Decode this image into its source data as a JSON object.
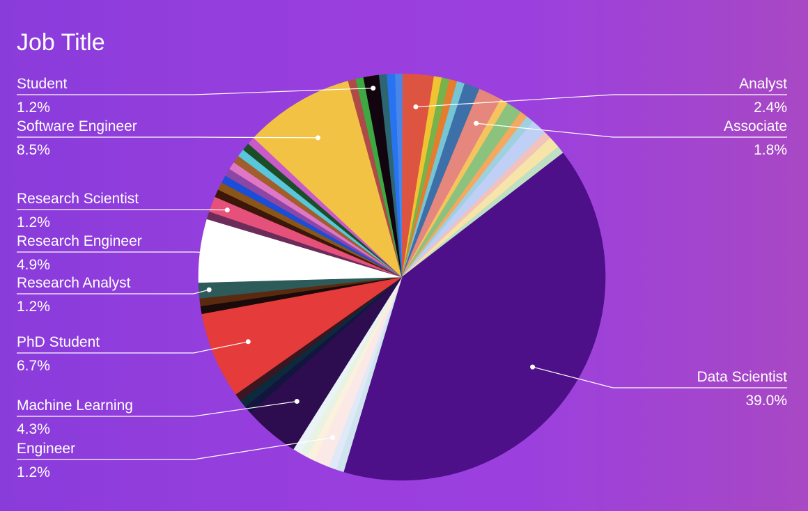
{
  "chart_data": {
    "type": "pie",
    "title": "Job Title",
    "start_angle_deg": -2,
    "colors": {
      "background_left": "#8a3cdb",
      "background_right": "#a848c4",
      "label_text": "#ffffff",
      "leader_line": "#ffffff"
    },
    "labeled_slices": [
      {
        "name": "Analyst",
        "value_label": "2.4%",
        "side": "right"
      },
      {
        "name": "Associate",
        "value_label": "1.8%",
        "side": "right"
      },
      {
        "name": "Data Scientist",
        "value_label": "39.0%",
        "side": "right"
      },
      {
        "name": "Engineer",
        "value_label": "1.2%",
        "side": "left"
      },
      {
        "name": "Machine Learning",
        "value_label": "4.3%",
        "side": "left"
      },
      {
        "name": "PhD Student",
        "value_label": "6.7%",
        "side": "left"
      },
      {
        "name": "Research Analyst",
        "value_label": "1.2%",
        "side": "left"
      },
      {
        "name": "Research Engineer",
        "value_label": "4.9%",
        "side": "left"
      },
      {
        "name": "Research Scientist",
        "value_label": "1.2%",
        "side": "left"
      },
      {
        "name": "Software Engineer",
        "value_label": "8.5%",
        "side": "left"
      },
      {
        "name": "Student",
        "value_label": "1.2%",
        "side": "left"
      }
    ],
    "slices": [
      {
        "value": 0.6,
        "color": "#4a86e8"
      },
      {
        "value": 2.4,
        "color": "#dd5540",
        "label_index": 0
      },
      {
        "value": 0.6,
        "color": "#f1c232"
      },
      {
        "value": 0.6,
        "color": "#76b34a"
      },
      {
        "value": 0.6,
        "color": "#e67c2e"
      },
      {
        "value": 0.6,
        "color": "#76c5d4"
      },
      {
        "value": 1.2,
        "color": "#3d6fa8"
      },
      {
        "value": 1.8,
        "color": "#e5877c",
        "label_index": 1
      },
      {
        "value": 0.6,
        "color": "#f6c45e"
      },
      {
        "value": 1.2,
        "color": "#8ac27e"
      },
      {
        "value": 0.6,
        "color": "#f5a85f"
      },
      {
        "value": 0.6,
        "color": "#9fd0e0"
      },
      {
        "value": 1.2,
        "color": "#c0cff5"
      },
      {
        "value": 0.6,
        "color": "#f2c2bd"
      },
      {
        "value": 0.9,
        "color": "#f7e4a8"
      },
      {
        "value": 0.6,
        "color": "#bfe0c3"
      },
      {
        "value": 39.0,
        "color": "#4d1088",
        "label_index": 2
      },
      {
        "value": 0.6,
        "color": "#cfe4ef"
      },
      {
        "value": 0.6,
        "color": "#e0e9f8"
      },
      {
        "value": 1.2,
        "color": "#fae9e6",
        "label_index": 3
      },
      {
        "value": 0.6,
        "color": "#fbf1dc"
      },
      {
        "value": 0.6,
        "color": "#e8f3e3"
      },
      {
        "value": 0.6,
        "color": "#eaf4f8"
      },
      {
        "value": 4.3,
        "color": "#2d0d4f",
        "label_index": 4
      },
      {
        "value": 0.6,
        "color": "#14153f"
      },
      {
        "value": 0.6,
        "color": "#0c2a3e"
      },
      {
        "value": 0.6,
        "color": "#3a1620"
      },
      {
        "value": 6.7,
        "color": "#e53b3b",
        "label_index": 5
      },
      {
        "value": 0.6,
        "color": "#1a0a0a"
      },
      {
        "value": 0.6,
        "color": "#5a2a10"
      },
      {
        "value": 1.2,
        "color": "#2d5b5a",
        "label_index": 6
      },
      {
        "value": 4.9,
        "color": "#ffffff",
        "label_index": 7
      },
      {
        "value": 0.6,
        "color": "#6b2c59"
      },
      {
        "value": 1.2,
        "color": "#e5517a",
        "label_index": 8
      },
      {
        "value": 0.6,
        "color": "#3c1608"
      },
      {
        "value": 0.6,
        "color": "#8a5518"
      },
      {
        "value": 0.6,
        "color": "#1a4dd8"
      },
      {
        "value": 0.6,
        "color": "#8c46a6"
      },
      {
        "value": 0.6,
        "color": "#df77c6"
      },
      {
        "value": 0.6,
        "color": "#a15d2c"
      },
      {
        "value": 0.6,
        "color": "#58c6db"
      },
      {
        "value": 0.6,
        "color": "#1b4d26"
      },
      {
        "value": 0.6,
        "color": "#c95ac9"
      },
      {
        "value": 8.5,
        "color": "#f2c244",
        "label_index": 9
      },
      {
        "value": 0.6,
        "color": "#b04a47"
      },
      {
        "value": 0.6,
        "color": "#3ea843"
      },
      {
        "value": 1.2,
        "color": "#130510",
        "label_index": 10
      },
      {
        "value": 0.6,
        "color": "#2d6670"
      },
      {
        "value": 0.6,
        "color": "#2873f0"
      }
    ]
  }
}
